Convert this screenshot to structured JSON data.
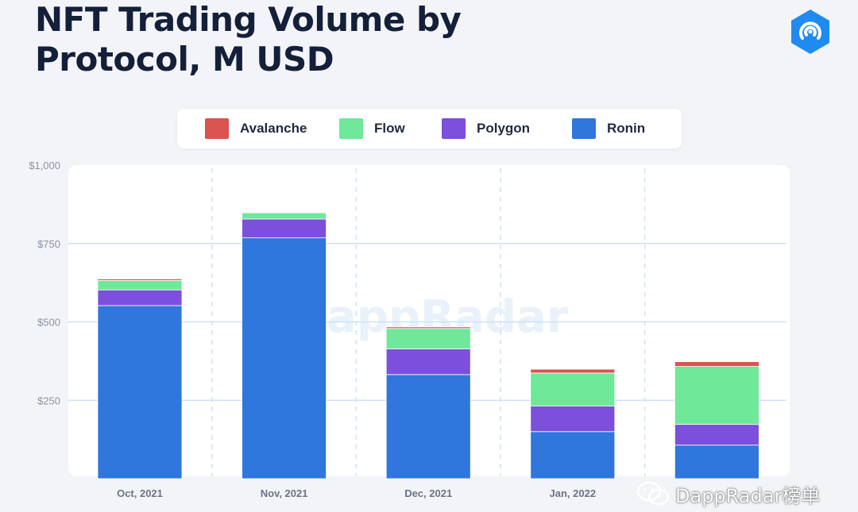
{
  "header": {
    "title_line1": "NFT Trading Volume by",
    "title_line2": "Protocol, M USD"
  },
  "watermark": {
    "center": "DappRadar",
    "corner": "DappRadar榜单"
  },
  "icons": {
    "brand": "dappradar-logo-icon",
    "corner": "wechat-icon"
  },
  "colors": {
    "Avalanche": "#d9534f",
    "Flow": "#6fe89a",
    "Polygon": "#7c4fdc",
    "Ronin": "#2f76dd",
    "title": "#14203a",
    "grid": "#cfe1f7"
  },
  "chart_data": {
    "type": "bar",
    "stacked": true,
    "title": "NFT Trading Volume by Protocol, M USD",
    "categories": [
      "Oct, 2021",
      "Nov, 2021",
      "Dec, 2021",
      "Jan, 2022",
      ""
    ],
    "series": [
      {
        "name": "Ronin",
        "values": [
          552,
          768,
          332,
          150,
          107
        ]
      },
      {
        "name": "Polygon",
        "values": [
          50,
          60,
          82,
          82,
          66
        ]
      },
      {
        "name": "Flow",
        "values": [
          30,
          20,
          65,
          105,
          185
        ]
      },
      {
        "name": "Avalanche",
        "values": [
          5,
          0,
          5,
          12,
          15
        ]
      }
    ],
    "legend_order": [
      "Avalanche",
      "Flow",
      "Polygon",
      "Ronin"
    ],
    "yticks": [
      "$1,000",
      "$750",
      "$500",
      "$250"
    ],
    "ytick_values": [
      1000,
      750,
      500,
      250
    ],
    "ylim": [
      0,
      1000
    ],
    "grid": true,
    "legend_position": "top-center"
  }
}
